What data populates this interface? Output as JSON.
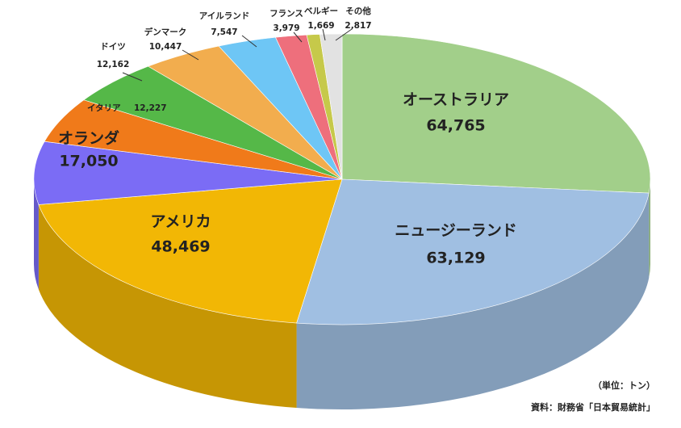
{
  "chart_data": {
    "type": "pie",
    "categories": [
      "オーストラリア",
      "ニュージーランド",
      "アメリカ",
      "オランダ",
      "イタリア",
      "ドイツ",
      "デンマーク",
      "アイルランド",
      "フランス",
      "ベルギー",
      "その他"
    ],
    "values": [
      64765,
      63129,
      48469,
      17050,
      12227,
      12162,
      10447,
      7547,
      3979,
      1669,
      2817
    ],
    "value_labels": [
      "64,765",
      "63,129",
      "48,469",
      "17,050",
      "12,227",
      "12,162",
      "10,447",
      "7,547",
      "3,979",
      "1,669",
      "2,817"
    ],
    "colors": [
      "#a2cf8a",
      "#a0bfe2",
      "#f2b705",
      "#7b6cf5",
      "#f07a1a",
      "#55b848",
      "#f2ad4e",
      "#6ec6f5",
      "#ee6f7c",
      "#c6c94a",
      "#e2e2e2"
    ],
    "notes": [
      "（単位：トン）",
      "資料：財務省「日本貿易統計」"
    ]
  }
}
